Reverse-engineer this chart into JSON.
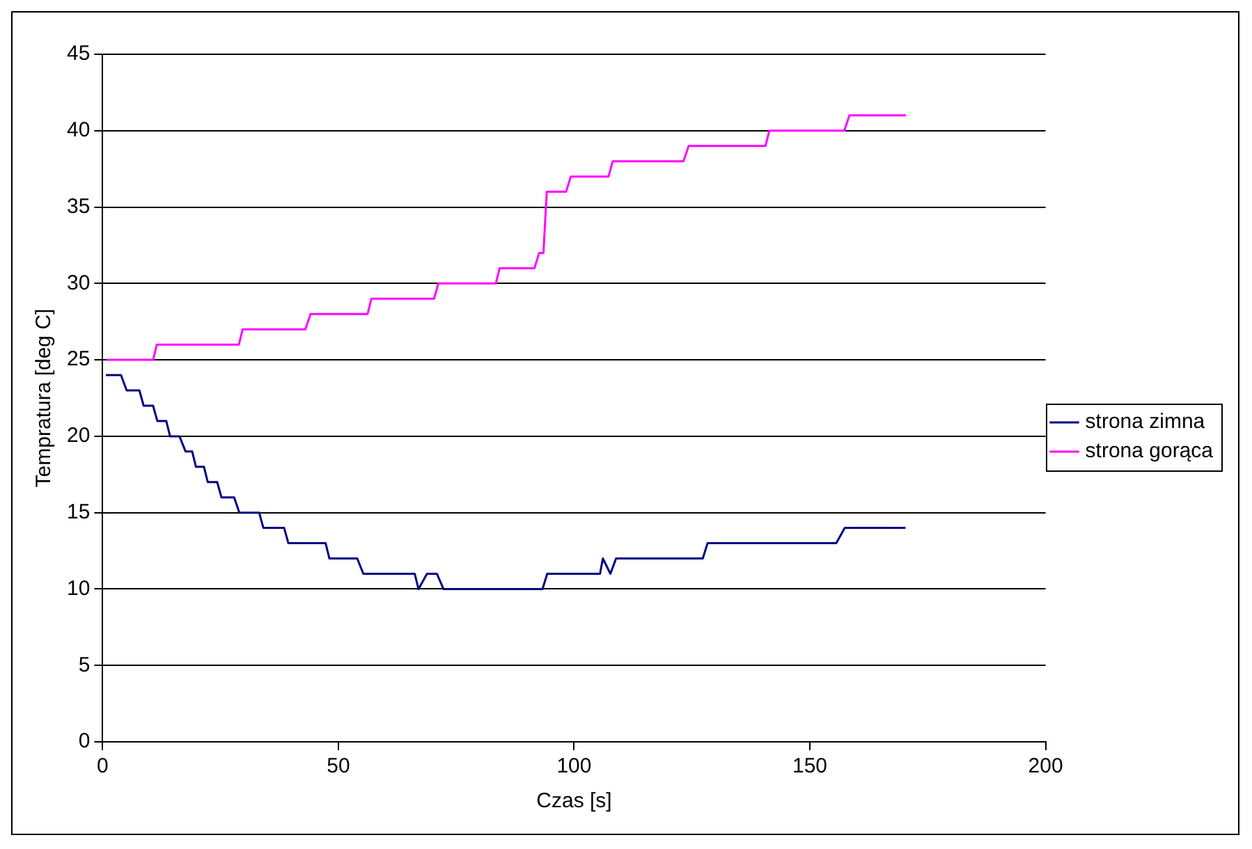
{
  "chart_data": {
    "type": "line",
    "xlabel": "Czas [s]",
    "ylabel": "Tempratura [deg C]",
    "xlim": [
      0,
      200
    ],
    "xticks": [
      0,
      50,
      100,
      150,
      200
    ],
    "ylim": [
      0,
      45
    ],
    "yticks": [
      0,
      5,
      10,
      15,
      20,
      25,
      30,
      35,
      40,
      45
    ],
    "grid": "y",
    "legend": "right",
    "marker": "none",
    "line_style": "solid",
    "series": [
      {
        "name": "strona zimna",
        "color": "#000080",
        "x": [
          0.7,
          3.9,
          5.1,
          7.8,
          8.7,
          10.7,
          11.6,
          13.5,
          14.3,
          16.3,
          17.6,
          19,
          19.8,
          21.5,
          22.3,
          24.3,
          25.2,
          27.9,
          29,
          33.2,
          34.1,
          37.5,
          38.5,
          39.4,
          47.3,
          48.1,
          54,
          55.3,
          66.2,
          67,
          68.8,
          70.9,
          72.3,
          93.3,
          94.3,
          105.5,
          106.1,
          107.7,
          108.9,
          127.3,
          128.3,
          155.6,
          157.4,
          170.3
        ],
        "values": [
          24,
          24,
          23,
          23,
          22,
          22,
          21,
          21,
          20,
          20,
          19,
          19,
          18,
          18,
          17,
          17,
          16,
          16,
          15,
          15,
          14,
          14,
          14,
          13,
          13,
          12,
          12,
          11,
          11,
          10,
          11,
          11,
          10,
          10,
          11,
          11,
          12,
          11,
          12,
          12,
          13,
          13,
          14,
          14
        ]
      },
      {
        "name": "strona gorąca",
        "color": "#ff00ff",
        "x": [
          0.8,
          10.7,
          11.5,
          28.9,
          29.7,
          43,
          44.1,
          56.2,
          57,
          70.3,
          71.2,
          83.4,
          84.2,
          91.6,
          92.6,
          93.5,
          94.2,
          98.3,
          99.3,
          107.3,
          108.2,
          123.2,
          124.3,
          140.6,
          141.4,
          157.3,
          158.4,
          170.4
        ],
        "values": [
          25,
          25,
          26,
          26,
          27,
          27,
          28,
          28,
          29,
          29,
          30,
          30,
          31,
          31,
          32,
          32,
          36,
          36,
          37,
          37,
          38,
          38,
          39,
          39,
          40,
          40,
          41,
          41
        ]
      }
    ]
  }
}
